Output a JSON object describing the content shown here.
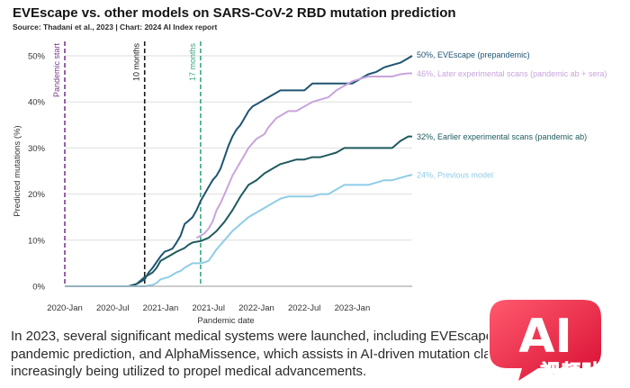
{
  "header": {
    "title": "EVEscape vs. other models on SARS-CoV-2 RBD mutation prediction",
    "source": "Source: Thadani et al., 2023 | Chart: 2024 AI Index report"
  },
  "chart_data": {
    "type": "line",
    "title": "EVEscape vs. other models on SARS-CoV-2 RBD mutation prediction",
    "xlabel": "Pandemic date",
    "ylabel": "Predicted mutations (%)",
    "ylim": [
      0,
      50
    ],
    "yticks": [
      0,
      10,
      20,
      30,
      40,
      50
    ],
    "ytick_labels": [
      "0%",
      "10%",
      "20%",
      "30%",
      "40%",
      "50%"
    ],
    "xlim": [
      0,
      43.5
    ],
    "xtick_positions": [
      0,
      6,
      12,
      18,
      24,
      30,
      36
    ],
    "xtick_labels": [
      "2020-Jan",
      "2020-Jul",
      "2021-Jan",
      "2021-Jul",
      "2022-Jan",
      "2022-Jul",
      "2023-Jan"
    ],
    "grid": "horizontal",
    "vlines": [
      {
        "x": 0,
        "label": "Pandemic start",
        "color": "#7a3b8f"
      },
      {
        "x": 10,
        "label": "10 months",
        "color": "#1a1a1a"
      },
      {
        "x": 17,
        "label": "17 months",
        "color": "#3aa882"
      }
    ],
    "series": [
      {
        "name": "EVEscape (prepandemic)",
        "label": "50%, EVEscape (prepandemic)",
        "color": "#1e5472",
        "x": [
          0,
          8,
          9,
          9.5,
          10,
          10.5,
          11,
          12,
          12.5,
          13,
          13.5,
          14,
          14.5,
          15,
          15.5,
          16,
          16.5,
          17,
          17.5,
          18,
          18.5,
          19,
          19.5,
          20,
          20.5,
          21,
          21.5,
          22,
          22.5,
          23,
          23.5,
          24,
          25,
          26,
          27,
          28,
          29,
          30,
          31,
          32,
          33,
          34,
          35,
          36,
          37,
          38,
          39,
          39.5,
          40,
          41,
          42,
          43,
          43.5
        ],
        "y": [
          0,
          0,
          0.5,
          1,
          1.5,
          3,
          4,
          6.5,
          7.5,
          7.8,
          8.2,
          9.5,
          11,
          13.5,
          14.2,
          15,
          16.5,
          18.5,
          20,
          21.5,
          23,
          24,
          25.5,
          28,
          30.5,
          32.5,
          34,
          35,
          36.5,
          38,
          39,
          39.5,
          40.5,
          41.5,
          42.5,
          42.5,
          42.5,
          42.5,
          44,
          44,
          44,
          44,
          44,
          44,
          45,
          46,
          46.5,
          47,
          47.5,
          48,
          48.5,
          49.5,
          50
        ]
      },
      {
        "name": "Later experimental scans (pandemic ab + sera)",
        "label": "46%, Later experimental scans (pandemic ab + sera)",
        "color": "#c9a4dc",
        "x": [
          16.5,
          17,
          17.5,
          18,
          18.5,
          19,
          19.5,
          20,
          20.5,
          21,
          21.5,
          22,
          22.5,
          23,
          23.5,
          24,
          24.5,
          25,
          25.5,
          26,
          26.5,
          27,
          27.5,
          28,
          29,
          30,
          31,
          32,
          33,
          34,
          35,
          36,
          37,
          38,
          39,
          40,
          41,
          42,
          43,
          43.5
        ],
        "y": [
          10.5,
          11,
          11.5,
          12.5,
          14,
          16.5,
          18,
          20,
          22,
          24,
          25.5,
          27,
          28.5,
          30,
          31,
          32,
          32.5,
          33,
          34.5,
          35.5,
          36.5,
          37,
          37.5,
          38,
          38,
          39,
          40,
          40.5,
          41,
          42.5,
          43.5,
          44.5,
          45,
          45.5,
          45.5,
          45.5,
          45.5,
          46,
          46.2,
          46.2
        ]
      },
      {
        "name": "Earlier experimental scans (pandemic ab)",
        "label": "32%, Earlier experimental scans (pandemic ab)",
        "color": "#1f5a5e",
        "x": [
          0,
          8,
          9,
          10,
          10.5,
          11,
          11.5,
          12,
          13,
          14,
          15,
          15.5,
          16,
          17,
          18,
          19,
          20,
          21,
          22,
          23,
          24,
          25,
          26,
          27,
          28,
          29,
          30,
          31,
          32,
          33,
          34,
          35,
          36,
          37,
          38,
          39,
          40,
          41,
          42,
          43,
          43.5
        ],
        "y": [
          0,
          0,
          0.5,
          2,
          2.5,
          3,
          4,
          5.5,
          6.5,
          7.5,
          8.3,
          9,
          9.5,
          9.8,
          10.5,
          12,
          14,
          16.5,
          19.5,
          22,
          23,
          24.5,
          25.5,
          26.5,
          27,
          27.5,
          27.5,
          28,
          28,
          28.5,
          29,
          30,
          30,
          30,
          30,
          30,
          30,
          30,
          31.5,
          32.5,
          32.5
        ]
      },
      {
        "name": "Previous model",
        "label": "24%, Previous model",
        "color": "#8fcce6",
        "x": [
          0,
          10,
          11,
          11.5,
          12,
          13,
          14,
          14.5,
          15,
          16,
          17,
          17.5,
          18,
          19,
          20,
          21,
          22,
          23,
          24,
          25,
          26,
          27,
          28,
          29,
          30,
          31,
          32,
          33,
          34,
          35,
          36,
          37,
          38,
          39,
          40,
          41,
          42,
          43,
          43.5
        ],
        "y": [
          0,
          0,
          0.3,
          0.7,
          1.5,
          2,
          3,
          3.3,
          4,
          5,
          5,
          5.2,
          5.5,
          8,
          10,
          12,
          13.5,
          15,
          16,
          17,
          18,
          19,
          19.5,
          19.5,
          19.5,
          19.5,
          20,
          20,
          21,
          22,
          22,
          22,
          22,
          22.5,
          23,
          23,
          23.5,
          24,
          24.2
        ]
      }
    ]
  },
  "caption": {
    "line1": "In 2023, several significant medical systems were launched, including EVEscape, which improves",
    "line2": "pandemic prediction, and AlphaMissence, which assists in AI-driven mutation classification. AI is",
    "line3": "increasingly being utilized to propel medical advancements."
  },
  "watermark": {
    "logo_text": "AI",
    "brand_text": "视频贴吧",
    "color": "#e2133b"
  }
}
